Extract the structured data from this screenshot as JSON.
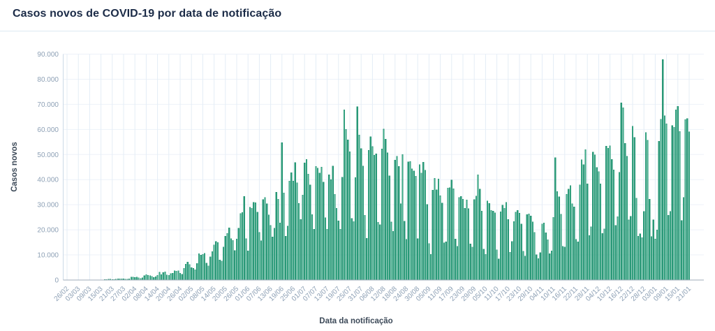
{
  "header": {
    "title": "Casos novos de COVID-19 por data de notificação"
  },
  "colors": {
    "title": "#1b2b47",
    "bar_fill": "#44b08d",
    "bar_border": "#1f9170",
    "grid": "#e8eff7",
    "tick_label": "#8da0b5",
    "axis_title": "#3d4a59"
  },
  "chart_data": {
    "type": "bar",
    "title": "Casos novos de COVID-19 por data de notificação",
    "xlabel": "Data da notificação",
    "ylabel": "Casos novos",
    "ylim": [
      0,
      90000
    ],
    "y_tick_step": 10000,
    "y_tick_labels": [
      "0",
      "10.000",
      "20.000",
      "30.000",
      "40.000",
      "50.000",
      "60.000",
      "70.000",
      "80.000",
      "90.000"
    ],
    "x_start_date": "26/02",
    "x_end_date": "21/01",
    "x_tick_interval_days": 6,
    "x_tick_labels": [
      "26/02",
      "03/03",
      "09/03",
      "15/03",
      "21/03",
      "27/03",
      "02/04",
      "08/04",
      "14/04",
      "20/04",
      "26/04",
      "02/05",
      "08/05",
      "14/05",
      "20/05",
      "26/05",
      "01/06",
      "07/06",
      "13/06",
      "19/06",
      "25/06",
      "01/07",
      "07/07",
      "13/07",
      "19/07",
      "25/07",
      "31/07",
      "06/08",
      "12/08",
      "18/08",
      "24/08",
      "30/08",
      "05/09",
      "11/09",
      "17/09",
      "23/09",
      "29/09",
      "05/10",
      "11/10",
      "17/10",
      "23/10",
      "29/10",
      "04/11",
      "10/11",
      "16/11",
      "22/11",
      "28/11",
      "04/12",
      "10/12",
      "16/12",
      "22/12",
      "28/12",
      "03/01",
      "09/01",
      "15/01",
      "21/01"
    ],
    "grid": true,
    "legend": "none",
    "values": [
      1,
      0,
      0,
      2,
      0,
      0,
      1,
      3,
      4,
      4,
      6,
      6,
      9,
      18,
      25,
      21,
      40,
      47,
      79,
      94,
      137,
      193,
      283,
      308,
      224,
      180,
      358,
      432,
      482,
      502,
      487,
      352,
      323,
      538,
      1138,
      1119,
      1074,
      1146,
      852,
      622,
      926,
      1661,
      2210,
      1930,
      1781,
      1442,
      989,
      1261,
      1832,
      3058,
      2105,
      2917,
      3257,
      1997,
      1927,
      2498,
      2678,
      3735,
      3503,
      3650,
      2755,
      2340,
      4613,
      6276,
      7218,
      6209,
      4970,
      4588,
      4075,
      6633,
      10503,
      9888,
      10222,
      10611,
      6760,
      5632,
      9258,
      11385,
      13944,
      15305,
      14919,
      7938,
      7569,
      13140,
      17408,
      18508,
      20803,
      16508,
      15813,
      11687,
      16324,
      20599,
      26417,
      26928,
      33274,
      16409,
      11598,
      28936,
      28633,
      30925,
      30830,
      27075,
      18912,
      15654,
      32091,
      32913,
      30412,
      25982,
      21704,
      17110,
      20647,
      34918,
      32188,
      22765,
      54771,
      34666,
      17459,
      21432,
      39436,
      42725,
      39483,
      46860,
      38693,
      30476,
      24052,
      33846,
      46712,
      48105,
      42223,
      37923,
      26051,
      20229,
      45305,
      44571,
      42619,
      45048,
      39023,
      24831,
      20286,
      41857,
      39924,
      45403,
      34177,
      28532,
      23529,
      20257,
      41008,
      67860,
      59961,
      55891,
      51147,
      24578,
      23284,
      40816,
      69074,
      57837,
      52383,
      45392,
      25800,
      16641,
      51603,
      57152,
      53139,
      49710,
      50230,
      23010,
      22048,
      52160,
      60091,
      56081,
      50644,
      41576,
      23101,
      19373,
      47784,
      49298,
      45323,
      30355,
      50032,
      23421,
      16158,
      47134,
      47161,
      44235,
      43412,
      41350,
      16409,
      45961,
      42659,
      46934,
      43773,
      30168,
      14521,
      10273,
      35816,
      40557,
      35930,
      40265,
      33523,
      30680,
      14768,
      15155,
      36653,
      36820,
      39797,
      36303,
      16389,
      13439,
      32817,
      33281,
      32226,
      28523,
      31911,
      28378,
      14318,
      13155,
      32058,
      33413,
      41994,
      36157,
      27444,
      12342,
      10273,
      31553,
      30563,
      27750,
      27444,
      26749,
      12042,
      8429,
      27235,
      29787,
      28629,
      30914,
      24062,
      10982,
      15383,
      23227,
      26979,
      27787,
      26571,
      22282,
      11531,
      9583,
      26106,
      26326,
      25537,
      23125,
      18947,
      10100,
      8501,
      10917,
      22294,
      22673,
      18862,
      16076,
      10554,
      11562,
      25012,
      48723,
      35294,
      33207,
      26140,
      13371,
      13100,
      34091,
      36227,
      37614,
      30355,
      29070,
      16207,
      15198,
      37936,
      47898,
      46027,
      51922,
      38307,
      17732,
      21138,
      50909,
      49863,
      44861,
      43209,
      38351,
      18615,
      20371,
      53347,
      52544,
      53453,
      48015,
      43900,
      21825,
      25193,
      42889,
      70574,
      68633,
      54428,
      49243,
      23926,
      25364,
      61323,
      56773,
      32620,
      17431,
      18479,
      16860,
      27279,
      58718,
      55649,
      32120,
      17341,
      23919,
      16274,
      20006,
      55264,
      64025,
      87843,
      65404,
      62290,
      25822,
      27279,
      61567,
      60899,
      67758,
      69198,
      59120,
      23671,
      32849,
      63853,
      64385,
      59047
    ]
  }
}
